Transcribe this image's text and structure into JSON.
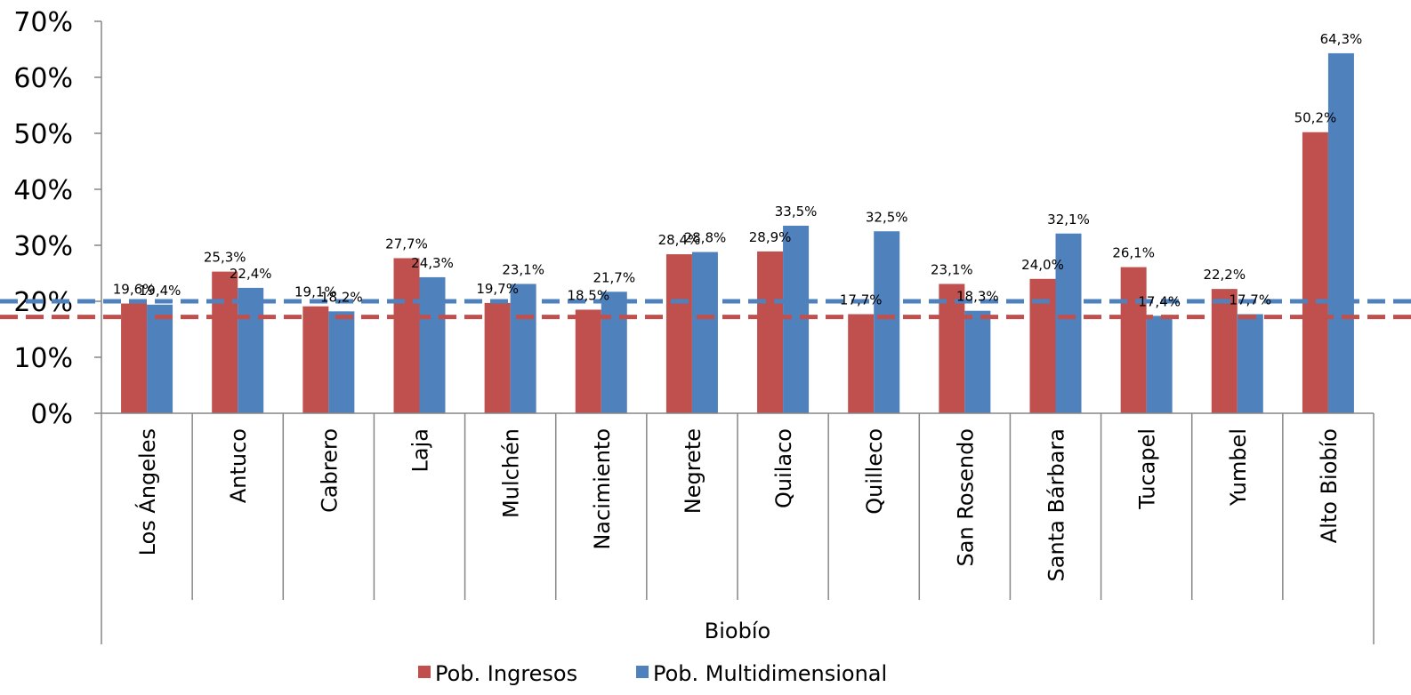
{
  "chart_data": {
    "type": "bar",
    "title": "",
    "xlabel": "",
    "ylabel": "",
    "group_label": "Biobío",
    "ylim": [
      0,
      70
    ],
    "yticks": [
      0,
      10,
      20,
      30,
      40,
      50,
      60,
      70
    ],
    "ytick_labels": [
      "0%",
      "10%",
      "20%",
      "30%",
      "40%",
      "50%",
      "60%",
      "70%"
    ],
    "categories": [
      "Los Ángeles",
      "Antuco",
      "Cabrero",
      "Laja",
      "Mulchén",
      "Nacimiento",
      "Negrete",
      "Quilaco",
      "Quilleco",
      "San Rosendo",
      "Santa Bárbara",
      "Tucapel",
      "Yumbel",
      "Alto Biobío"
    ],
    "series": [
      {
        "name": "Pob. Ingresos",
        "color": "#c0504d",
        "values": [
          19.6,
          25.3,
          19.1,
          27.7,
          19.7,
          18.5,
          28.4,
          28.9,
          17.7,
          23.1,
          24.0,
          26.1,
          22.2,
          50.2
        ],
        "labels": [
          "19,6%",
          "25,3%",
          "19,1%",
          "27,7%",
          "19,7%",
          "18,5%",
          "28,4%",
          "28,9%",
          "17,7%",
          "23,1%",
          "24,0%",
          "26,1%",
          "22,2%",
          "50,2%"
        ]
      },
      {
        "name": "Pob. Multidimensional",
        "color": "#4f81bd",
        "values": [
          19.4,
          22.4,
          18.2,
          24.3,
          23.1,
          21.7,
          28.8,
          33.5,
          32.5,
          18.3,
          32.1,
          17.4,
          17.7,
          64.3
        ],
        "labels": [
          "19,4%",
          "22,4%",
          "18,2%",
          "24,3%",
          "23,1%",
          "21,7%",
          "28,8%",
          "33,5%",
          "32,5%",
          "18,3%",
          "32,1%",
          "17,4%",
          "17,7%",
          "64,3%"
        ]
      }
    ],
    "reference_lines": [
      {
        "value": 20.0,
        "color": "#4f81bd",
        "style": "dashed"
      },
      {
        "value": 17.2,
        "color": "#c0504d",
        "style": "dashed"
      }
    ],
    "legend_position": "bottom",
    "grid": false
  }
}
